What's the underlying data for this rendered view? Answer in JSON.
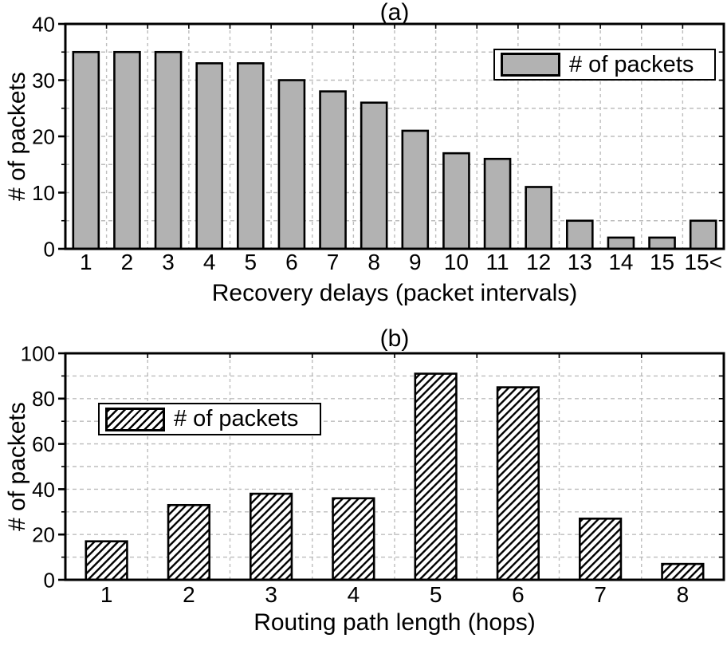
{
  "figure_caption_labels": {
    "panel_a": "(a)",
    "panel_b": "(b)"
  },
  "colors": {
    "background": "#ffffff",
    "axis": "#000000",
    "grid": "#bdbdbd",
    "bar_gray_fill": "#b2b2b2",
    "bar_hatch_color": "#000000",
    "text": "#000000"
  },
  "chart_data": [
    {
      "type": "bar",
      "title": "(a)",
      "categories": [
        "1",
        "2",
        "3",
        "4",
        "5",
        "6",
        "7",
        "8",
        "9",
        "10",
        "11",
        "12",
        "13",
        "14",
        "15",
        "15<"
      ],
      "values": [
        35,
        35,
        35,
        33,
        33,
        30,
        28,
        26,
        21,
        17,
        16,
        11,
        5,
        2,
        2,
        5
      ],
      "xlabel": "Recovery delays (packet intervals)",
      "ylabel": "# of packets",
      "ylim": [
        0,
        40
      ],
      "yticks": [
        0,
        10,
        20,
        30,
        40
      ],
      "ytick_labels": [
        "0",
        "10",
        "20",
        "30",
        "40"
      ],
      "grid_step": 5,
      "grid": "dashed",
      "bar_style": "solid-gray",
      "bar_fill": "#b2b2b2",
      "legend_label": "# of packets",
      "legend_position": "upper-right"
    },
    {
      "type": "bar",
      "title": "(b)",
      "categories": [
        "1",
        "2",
        "3",
        "4",
        "5",
        "6",
        "7",
        "8"
      ],
      "values": [
        17,
        33,
        38,
        36,
        91,
        85,
        27,
        7
      ],
      "xlabel": "Routing path length (hops)",
      "ylabel": "# of packets",
      "ylim": [
        0,
        100
      ],
      "yticks": [
        0,
        20,
        40,
        60,
        80,
        100
      ],
      "ytick_labels": [
        "0",
        "20",
        "40",
        "60",
        "80",
        "100"
      ],
      "grid_step": 10,
      "grid": "dashed",
      "bar_style": "hatched",
      "bar_fill": "#ffffff",
      "legend_label": "# of packets",
      "legend_position": "upper-left"
    }
  ]
}
